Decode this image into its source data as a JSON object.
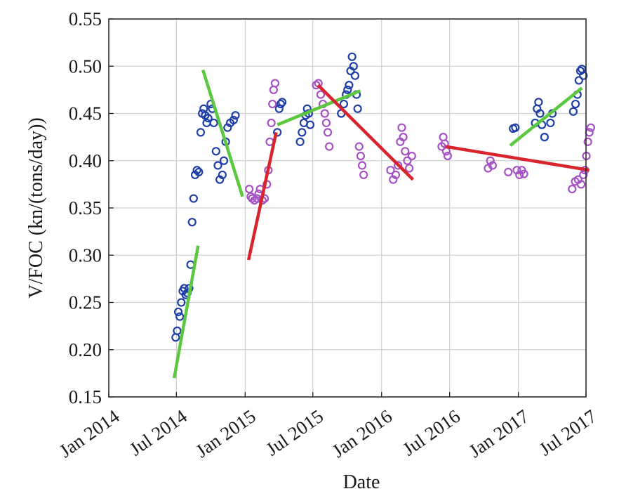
{
  "chart_data": {
    "type": "scatter",
    "title": "",
    "xlabel": "Date",
    "ylabel": "V/FOC (kn/(tons/day))",
    "grid": true,
    "legend": "none",
    "x_range": [
      "2014-01-01",
      "2017-07-01"
    ],
    "ylim": [
      0.15,
      0.55
    ],
    "x_ticks": [
      "2014-01-01",
      "2014-07-01",
      "2015-01-01",
      "2015-07-01",
      "2016-01-01",
      "2016-07-01",
      "2017-01-01",
      "2017-07-01"
    ],
    "x_tick_labels": [
      "Jan 2014",
      "Jul 2014",
      "Jan 2015",
      "Jul 2015",
      "Jan 2016",
      "Jul 2016",
      "Jan 2017",
      "Jul 2017"
    ],
    "y_ticks": [
      0.15,
      0.2,
      0.25,
      0.3,
      0.35,
      0.4,
      0.45,
      0.5,
      0.55
    ],
    "y_tick_labels": [
      "0.15",
      "0.20",
      "0.25",
      "0.30",
      "0.35",
      "0.40",
      "0.45",
      "0.50",
      "0.55"
    ],
    "colors": {
      "blue": "#1f3ea8",
      "purple": "#a452c4",
      "green": "#5cc840",
      "red": "#d8242c",
      "grid": "#d0d0d0",
      "axis": "#222222"
    },
    "series": [
      {
        "color": "blue",
        "marker": "circle",
        "points": [
          [
            "2014-06-29",
            0.213
          ],
          [
            "2014-07-03",
            0.22
          ],
          [
            "2014-07-06",
            0.24
          ],
          [
            "2014-07-10",
            0.235
          ],
          [
            "2014-07-14",
            0.25
          ],
          [
            "2014-07-18",
            0.262
          ],
          [
            "2014-07-22",
            0.265
          ],
          [
            "2014-07-26",
            0.258
          ],
          [
            "2014-07-30",
            0.26
          ],
          [
            "2014-08-04",
            0.265
          ],
          [
            "2014-08-08",
            0.29
          ],
          [
            "2014-08-12",
            0.335
          ],
          [
            "2014-08-16",
            0.36
          ],
          [
            "2014-08-20",
            0.385
          ],
          [
            "2014-08-25",
            0.39
          ],
          [
            "2014-08-30",
            0.388
          ],
          [
            "2014-09-04",
            0.43
          ],
          [
            "2014-09-08",
            0.45
          ],
          [
            "2014-09-12",
            0.455
          ],
          [
            "2014-09-16",
            0.448
          ],
          [
            "2014-09-20",
            0.44
          ],
          [
            "2014-09-24",
            0.445
          ],
          [
            "2014-10-01",
            0.46
          ],
          [
            "2014-10-05",
            0.455
          ],
          [
            "2014-10-09",
            0.44
          ],
          [
            "2014-10-15",
            0.41
          ],
          [
            "2014-10-20",
            0.395
          ],
          [
            "2014-10-25",
            0.38
          ],
          [
            "2014-11-01",
            0.385
          ],
          [
            "2014-11-05",
            0.4
          ],
          [
            "2014-11-10",
            0.42
          ],
          [
            "2014-11-15",
            0.435
          ],
          [
            "2014-11-22",
            0.44
          ],
          [
            "2014-12-01",
            0.443
          ],
          [
            "2014-12-06",
            0.448
          ],
          [
            "2015-03-28",
            0.43
          ],
          [
            "2015-04-02",
            0.455
          ],
          [
            "2015-04-06",
            0.46
          ],
          [
            "2015-04-10",
            0.462
          ],
          [
            "2015-05-28",
            0.42
          ],
          [
            "2015-06-02",
            0.43
          ],
          [
            "2015-06-07",
            0.44
          ],
          [
            "2015-06-12",
            0.448
          ],
          [
            "2015-06-16",
            0.455
          ],
          [
            "2015-06-20",
            0.45
          ],
          [
            "2015-06-24",
            0.438
          ],
          [
            "2015-09-15",
            0.45
          ],
          [
            "2015-09-22",
            0.46
          ],
          [
            "2015-09-28",
            0.47
          ],
          [
            "2015-10-02",
            0.475
          ],
          [
            "2015-10-06",
            0.48
          ],
          [
            "2015-10-10",
            0.495
          ],
          [
            "2015-10-14",
            0.51
          ],
          [
            "2015-10-18",
            0.5
          ],
          [
            "2015-10-22",
            0.49
          ],
          [
            "2015-10-26",
            0.47
          ],
          [
            "2015-10-29",
            0.455
          ],
          [
            "2016-12-18",
            0.434
          ],
          [
            "2016-12-24",
            0.435
          ],
          [
            "2017-02-15",
            0.44
          ],
          [
            "2017-02-20",
            0.455
          ],
          [
            "2017-02-24",
            0.462
          ],
          [
            "2017-02-28",
            0.45
          ],
          [
            "2017-03-05",
            0.438
          ],
          [
            "2017-03-12",
            0.425
          ],
          [
            "2017-03-28",
            0.44
          ],
          [
            "2017-04-02",
            0.45
          ],
          [
            "2017-05-28",
            0.452
          ],
          [
            "2017-06-03",
            0.46
          ],
          [
            "2017-06-08",
            0.47
          ],
          [
            "2017-06-12",
            0.485
          ],
          [
            "2017-06-16",
            0.495
          ],
          [
            "2017-06-20",
            0.497
          ],
          [
            "2017-06-24",
            0.49
          ]
        ]
      },
      {
        "color": "purple",
        "marker": "circle",
        "points": [
          [
            "2015-01-12",
            0.37
          ],
          [
            "2015-01-16",
            0.362
          ],
          [
            "2015-01-20",
            0.36
          ],
          [
            "2015-01-26",
            0.358
          ],
          [
            "2015-02-02",
            0.36
          ],
          [
            "2015-02-06",
            0.365
          ],
          [
            "2015-02-10",
            0.37
          ],
          [
            "2015-02-16",
            0.358
          ],
          [
            "2015-02-22",
            0.36
          ],
          [
            "2015-02-28",
            0.375
          ],
          [
            "2015-03-04",
            0.39
          ],
          [
            "2015-03-08",
            0.42
          ],
          [
            "2015-03-12",
            0.44
          ],
          [
            "2015-03-15",
            0.46
          ],
          [
            "2015-03-18",
            0.475
          ],
          [
            "2015-03-22",
            0.482
          ],
          [
            "2015-07-10",
            0.48
          ],
          [
            "2015-07-16",
            0.482
          ],
          [
            "2015-07-22",
            0.47
          ],
          [
            "2015-07-28",
            0.46
          ],
          [
            "2015-08-02",
            0.45
          ],
          [
            "2015-08-06",
            0.44
          ],
          [
            "2015-08-10",
            0.43
          ],
          [
            "2015-08-14",
            0.415
          ],
          [
            "2015-11-02",
            0.415
          ],
          [
            "2015-11-06",
            0.405
          ],
          [
            "2015-11-10",
            0.395
          ],
          [
            "2015-11-14",
            0.385
          ],
          [
            "2016-01-25",
            0.39
          ],
          [
            "2016-02-01",
            0.38
          ],
          [
            "2016-02-08",
            0.385
          ],
          [
            "2016-02-14",
            0.395
          ],
          [
            "2016-02-20",
            0.42
          ],
          [
            "2016-02-24",
            0.435
          ],
          [
            "2016-02-28",
            0.425
          ],
          [
            "2016-03-04",
            0.41
          ],
          [
            "2016-03-10",
            0.4
          ],
          [
            "2016-03-15",
            0.392
          ],
          [
            "2016-03-22",
            0.405
          ],
          [
            "2016-06-10",
            0.415
          ],
          [
            "2016-06-14",
            0.425
          ],
          [
            "2016-06-18",
            0.418
          ],
          [
            "2016-06-22",
            0.41
          ],
          [
            "2016-06-26",
            0.405
          ],
          [
            "2016-10-12",
            0.392
          ],
          [
            "2016-10-18",
            0.4
          ],
          [
            "2016-10-24",
            0.395
          ],
          [
            "2016-12-05",
            0.388
          ],
          [
            "2016-12-28",
            0.39
          ],
          [
            "2017-01-04",
            0.385
          ],
          [
            "2017-01-10",
            0.39
          ],
          [
            "2017-01-16",
            0.386
          ],
          [
            "2017-05-25",
            0.37
          ],
          [
            "2017-06-02",
            0.378
          ],
          [
            "2017-06-10",
            0.38
          ],
          [
            "2017-06-18",
            0.375
          ],
          [
            "2017-06-24",
            0.385
          ],
          [
            "2017-06-28",
            0.39
          ],
          [
            "2017-07-02",
            0.405
          ],
          [
            "2017-07-06",
            0.42
          ],
          [
            "2017-07-10",
            0.43
          ],
          [
            "2017-07-14",
            0.435
          ]
        ]
      }
    ],
    "trend_lines": [
      {
        "color": "green",
        "start": [
          "2014-06-25",
          0.17
        ],
        "end": [
          "2014-08-28",
          0.31
        ]
      },
      {
        "color": "green",
        "start": [
          "2014-09-10",
          0.496
        ],
        "end": [
          "2014-12-25",
          0.362
        ]
      },
      {
        "color": "green",
        "start": [
          "2015-03-28",
          0.438
        ],
        "end": [
          "2015-11-05",
          0.474
        ]
      },
      {
        "color": "green",
        "start": [
          "2016-12-10",
          0.416
        ],
        "end": [
          "2017-06-20",
          0.477
        ]
      },
      {
        "color": "red",
        "start": [
          "2015-01-10",
          0.295
        ],
        "end": [
          "2015-03-25",
          0.43
        ]
      },
      {
        "color": "red",
        "start": [
          "2015-07-15",
          0.48
        ],
        "end": [
          "2016-03-25",
          0.38
        ]
      },
      {
        "color": "red",
        "start": [
          "2016-06-20",
          0.415
        ],
        "end": [
          "2017-07-10",
          0.39
        ]
      }
    ]
  }
}
